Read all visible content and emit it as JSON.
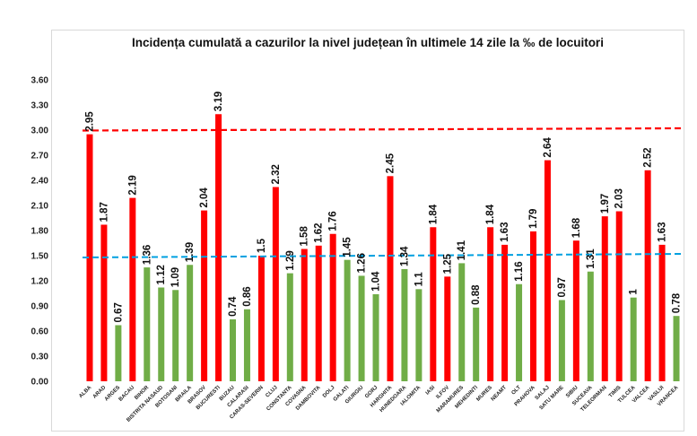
{
  "chart_data": {
    "type": "bar",
    "title": "Incidența cumulată a cazurilor la nivel județean în ultimele 14 zile la ‰ de locuitori",
    "ylim": [
      0,
      3.6
    ],
    "yticks": [
      "0.00",
      "0.30",
      "0.60",
      "0.90",
      "1.20",
      "1.50",
      "1.80",
      "2.10",
      "2.40",
      "2.70",
      "3.00",
      "3.30",
      "3.60"
    ],
    "grid": false,
    "legend": "none",
    "threshold_lines": [
      {
        "value": 3.0,
        "color": "#ff0000",
        "style": "dashed"
      },
      {
        "value": 1.5,
        "color": "#00a0e0",
        "style": "dashed"
      }
    ],
    "colors": {
      "above": "#ff0000",
      "below": "#70ad47"
    },
    "categories": [
      "ALBA",
      "ARAD",
      "ARGES",
      "BACAU",
      "BIHOR",
      "BISTRITA NASAUD",
      "BOTOSANI",
      "BRAILA",
      "BRASOV",
      "BUCURESTI",
      "BUZAU",
      "CALARASI",
      "CARAS-SEVERIN",
      "CLUJ",
      "CONSTANTA",
      "COVASNA",
      "DAMBOVITA",
      "DOLJ",
      "GALATI",
      "GIURGIU",
      "GORJ",
      "HARGHITA",
      "HUNEDOARA",
      "IALOMITA",
      "IASI",
      "ILFOV",
      "MARAMURES",
      "MEHEDINTI",
      "MURES",
      "NEAMT",
      "OLT",
      "PRAHOVA",
      "SALAJ",
      "SATU MARE",
      "SIBIU",
      "SUCEAVA",
      "TELEORMAN",
      "TIMIS",
      "TULCEA",
      "VALCEA",
      "VASLUI",
      "VRANCEA"
    ],
    "values": [
      2.95,
      1.87,
      0.67,
      2.19,
      1.36,
      1.12,
      1.09,
      1.39,
      2.04,
      3.19,
      0.74,
      0.86,
      1.5,
      2.32,
      1.29,
      1.58,
      1.62,
      1.76,
      1.45,
      1.26,
      1.04,
      2.45,
      1.34,
      1.1,
      1.84,
      1.25,
      1.41,
      0.88,
      1.84,
      1.63,
      1.16,
      1.79,
      2.64,
      0.97,
      1.68,
      1.31,
      1.97,
      2.03,
      1,
      2.52,
      1.63,
      0.78
    ],
    "value_labels": [
      "2.95",
      "1.87",
      "0.67",
      "2.19",
      "1.36",
      "1.12",
      "1.09",
      "1.39",
      "2.04",
      "3.19",
      "0.74",
      "0.86",
      "1.5",
      "2.32",
      "1.29",
      "1.58",
      "1.62",
      "1.76",
      "1.45",
      "1.26",
      "1.04",
      "2.45",
      "1.34",
      "1.1",
      "1.84",
      "1.25",
      "1.41",
      "0.88",
      "1.84",
      "1.63",
      "1.16",
      "1.79",
      "2.64",
      "0.97",
      "1.68",
      "1.31",
      "1.97",
      "2.03",
      "1",
      "2.52",
      "1.63",
      "0.78"
    ],
    "bar_colors": [
      "red",
      "red",
      "green",
      "red",
      "green",
      "green",
      "green",
      "green",
      "red",
      "red",
      "green",
      "green",
      "red",
      "red",
      "green",
      "red",
      "red",
      "red",
      "green",
      "green",
      "green",
      "red",
      "green",
      "green",
      "red",
      "red",
      "green",
      "green",
      "red",
      "red",
      "green",
      "red",
      "red",
      "green",
      "red",
      "green",
      "red",
      "red",
      "green",
      "red",
      "red",
      "green"
    ]
  }
}
